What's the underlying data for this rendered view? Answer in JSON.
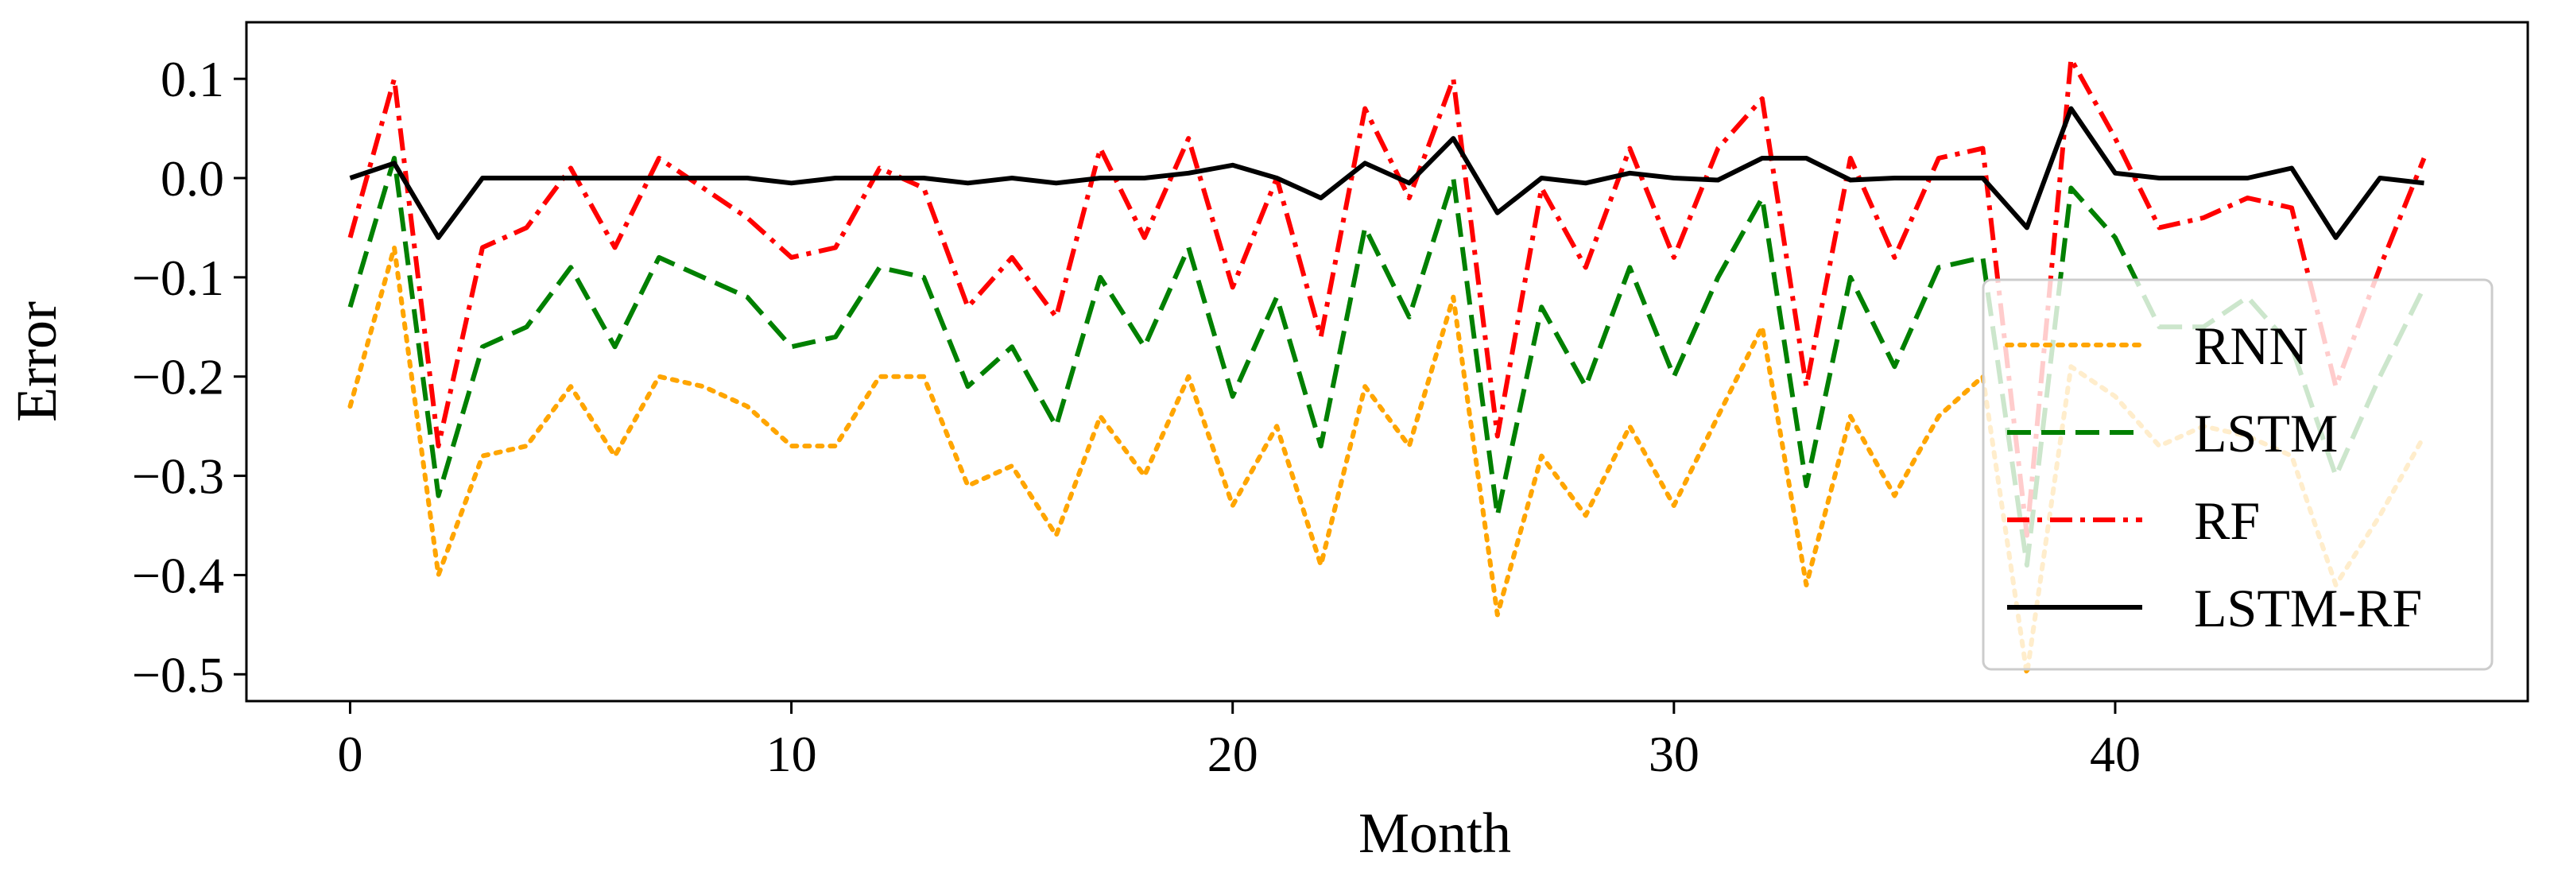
{
  "chart_data": {
    "type": "line",
    "title": "",
    "xlabel": "Month",
    "ylabel": "Error",
    "xlim": [
      -2.35,
      49.35
    ],
    "ylim": [
      -0.527,
      0.157
    ],
    "xticks": [
      0,
      10,
      20,
      30,
      40
    ],
    "yticks": [
      0.1,
      0.0,
      -0.1,
      -0.2,
      -0.3,
      -0.4,
      -0.5
    ],
    "ytick_labels": [
      "0.1",
      "0.0",
      "−0.1",
      "−0.2",
      "−0.3",
      "−0.4",
      "−0.5"
    ],
    "grid": false,
    "legend": "right",
    "x": [
      0,
      1,
      2,
      3,
      4,
      5,
      6,
      7,
      8,
      9,
      10,
      11,
      12,
      13,
      14,
      15,
      16,
      17,
      18,
      19,
      20,
      21,
      22,
      23,
      24,
      25,
      26,
      27,
      28,
      29,
      30,
      31,
      32,
      33,
      34,
      35,
      36,
      37,
      38,
      39,
      40,
      41,
      42,
      43,
      44,
      45,
      46,
      47
    ],
    "series": [
      {
        "name": "RNN",
        "color": "#ffa500",
        "style": "dotted",
        "values": [
          -0.23,
          -0.07,
          -0.4,
          -0.28,
          -0.27,
          -0.21,
          -0.28,
          -0.2,
          -0.21,
          -0.23,
          -0.27,
          -0.27,
          -0.2,
          -0.2,
          -0.31,
          -0.29,
          -0.36,
          -0.24,
          -0.3,
          -0.2,
          -0.33,
          -0.25,
          -0.39,
          -0.21,
          -0.27,
          -0.12,
          -0.44,
          -0.28,
          -0.34,
          -0.25,
          -0.33,
          -0.24,
          -0.15,
          -0.41,
          -0.24,
          -0.32,
          -0.24,
          -0.2,
          -0.5,
          -0.19,
          -0.22,
          -0.27,
          -0.25,
          -0.26,
          -0.28,
          -0.41,
          -0.34,
          -0.26
        ]
      },
      {
        "name": "LSTM",
        "color": "#008000",
        "style": "dashed",
        "values": [
          -0.13,
          0.02,
          -0.32,
          -0.17,
          -0.15,
          -0.09,
          -0.17,
          -0.08,
          -0.1,
          -0.12,
          -0.17,
          -0.16,
          -0.09,
          -0.1,
          -0.21,
          -0.17,
          -0.25,
          -0.1,
          -0.17,
          -0.07,
          -0.22,
          -0.12,
          -0.27,
          -0.05,
          -0.14,
          0.0,
          -0.34,
          -0.13,
          -0.21,
          -0.09,
          -0.2,
          -0.1,
          -0.02,
          -0.31,
          -0.1,
          -0.19,
          -0.09,
          -0.08,
          -0.39,
          -0.01,
          -0.06,
          -0.15,
          -0.15,
          -0.12,
          -0.17,
          -0.3,
          -0.2,
          -0.11
        ]
      },
      {
        "name": "RF",
        "color": "#ff0000",
        "style": "dashdot",
        "values": [
          -0.06,
          0.1,
          -0.27,
          -0.07,
          -0.05,
          0.01,
          -0.07,
          0.02,
          -0.01,
          -0.04,
          -0.08,
          -0.07,
          0.01,
          -0.01,
          -0.13,
          -0.08,
          -0.14,
          0.03,
          -0.06,
          0.04,
          -0.11,
          0.0,
          -0.16,
          0.07,
          -0.02,
          0.1,
          -0.26,
          -0.01,
          -0.09,
          0.03,
          -0.08,
          0.03,
          0.08,
          -0.21,
          0.02,
          -0.08,
          0.02,
          0.03,
          -0.36,
          0.12,
          0.04,
          -0.05,
          -0.04,
          -0.02,
          -0.03,
          -0.21,
          -0.09,
          0.02
        ]
      },
      {
        "name": "LSTM-RF",
        "color": "#000000",
        "style": "solid",
        "values": [
          0.0,
          0.015,
          -0.06,
          0.0,
          0.0,
          0.0,
          0.0,
          0.0,
          0.0,
          0.0,
          -0.005,
          0.0,
          0.0,
          0.0,
          -0.005,
          0.0,
          -0.005,
          0.0,
          0.0,
          0.005,
          0.013,
          0.0,
          -0.02,
          0.015,
          -0.005,
          0.04,
          -0.035,
          0.0,
          -0.005,
          0.005,
          0.0,
          -0.002,
          0.02,
          0.02,
          -0.002,
          0.0,
          0.0,
          0.0,
          -0.05,
          0.07,
          0.005,
          0.0,
          0.0,
          0.0,
          0.01,
          -0.06,
          0.0,
          -0.005
        ]
      }
    ]
  }
}
